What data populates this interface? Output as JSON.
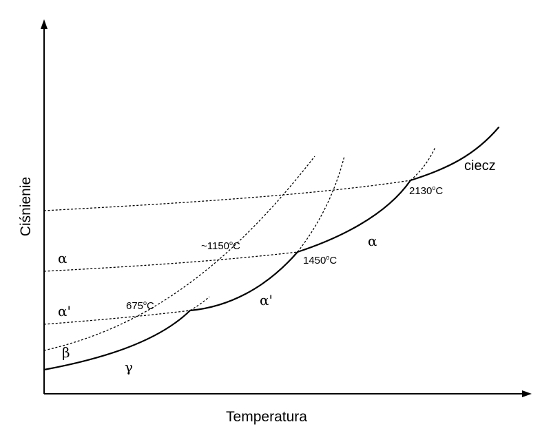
{
  "diagram": {
    "x_axis_label": "Temperatura",
    "y_axis_label": "Ciśnienie",
    "temperature_labels": {
      "t675": {
        "value": "675",
        "degree": "o",
        "unit": "C"
      },
      "t1150": {
        "value": "~1150",
        "degree": "o",
        "unit": "C"
      },
      "t1450": {
        "value": "1450",
        "degree": "o",
        "unit": "C"
      },
      "t2130": {
        "value": "2130",
        "degree": "o",
        "unit": "C"
      }
    },
    "phase_labels": {
      "alpha_left": "α",
      "alpha_prime_left": "α'",
      "beta": "β",
      "gamma": "γ",
      "alpha_prime_mid": "α'",
      "alpha_right": "α",
      "liquid": "ciecz"
    }
  }
}
